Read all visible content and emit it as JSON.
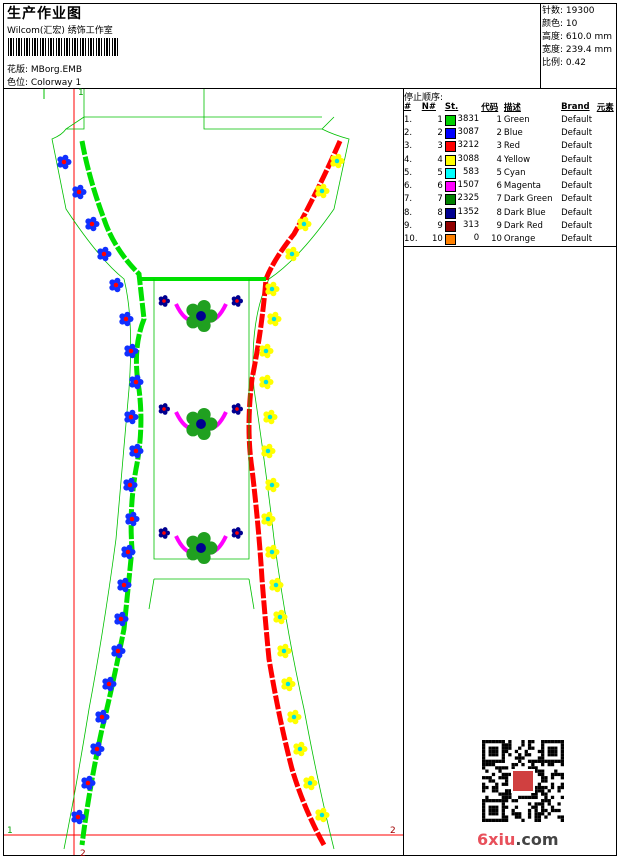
{
  "header": {
    "title": "生产作业图",
    "subtitle": "Wilcom(汇宏) 绣饰工作室",
    "design_label": "花版: MBorg.EMB",
    "colorway_label": "色位: Colorway 1"
  },
  "stats": {
    "stitches": "针数: 19300",
    "colors": "颜色: 10",
    "height": "高度: 610.0 mm",
    "width": "宽度: 239.4 mm",
    "scale": "比例: 0.42"
  },
  "stop_sequence": {
    "label": "停止顺序:",
    "headers": [
      "#",
      "N#",
      "St.",
      "代码",
      "描述",
      "Brand",
      "元素"
    ],
    "rows": [
      {
        "idx": "1.",
        "n": "1",
        "color": "#00d000",
        "st": "3831",
        "code": "1",
        "desc": "Green",
        "brand": "Default"
      },
      {
        "idx": "2.",
        "n": "2",
        "color": "#0000ff",
        "st": "3087",
        "code": "2",
        "desc": "Blue",
        "brand": "Default"
      },
      {
        "idx": "3.",
        "n": "3",
        "color": "#ff0000",
        "st": "3212",
        "code": "3",
        "desc": "Red",
        "brand": "Default"
      },
      {
        "idx": "4.",
        "n": "4",
        "color": "#ffff00",
        "st": "3088",
        "code": "4",
        "desc": "Yellow",
        "brand": "Default"
      },
      {
        "idx": "5.",
        "n": "5",
        "color": "#00ffff",
        "st": "583",
        "code": "5",
        "desc": "Cyan",
        "brand": "Default"
      },
      {
        "idx": "6.",
        "n": "6",
        "color": "#ff00ff",
        "st": "1507",
        "code": "6",
        "desc": "Magenta",
        "brand": "Default"
      },
      {
        "idx": "7.",
        "n": "7",
        "color": "#008000",
        "st": "2325",
        "code": "7",
        "desc": "Dark Green",
        "brand": "Default"
      },
      {
        "idx": "8.",
        "n": "8",
        "color": "#000090",
        "st": "1352",
        "code": "8",
        "desc": "Dark Blue",
        "brand": "Default"
      },
      {
        "idx": "9.",
        "n": "9",
        "color": "#900000",
        "st": "313",
        "code": "9",
        "desc": "Dark Red",
        "brand": "Default"
      },
      {
        "idx": "10.",
        "n": "10",
        "color": "#ff8000",
        "st": "0",
        "code": "10",
        "desc": "Orange",
        "brand": "Default"
      }
    ]
  },
  "markers": {
    "m1": "1",
    "m2": "2"
  },
  "watermark": {
    "main": "6xiu",
    "suffix": ".com"
  }
}
